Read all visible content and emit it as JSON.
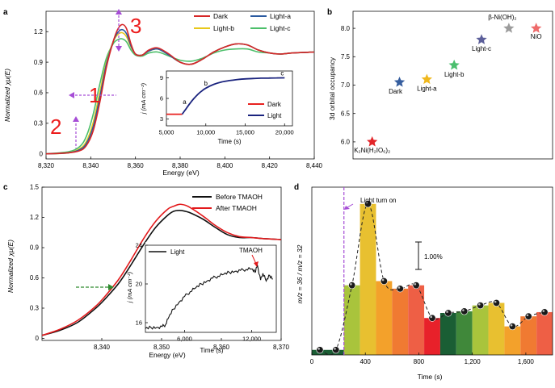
{
  "figure": {
    "panel_labels": [
      "a",
      "b",
      "c",
      "d"
    ],
    "annotations": {
      "red_1": "1",
      "red_2": "2",
      "red_3": "3"
    }
  },
  "chart_data": [
    {
      "id": "a",
      "type": "line",
      "xlabel": "Energy (eV)",
      "ylabel": "Normalized χμ(E)",
      "xlim": [
        8320,
        8440
      ],
      "ylim": [
        -0.05,
        1.4
      ],
      "xticks": [
        "8,320",
        "8,340",
        "8,360",
        "8,380",
        "8,400",
        "8,420",
        "8,440"
      ],
      "xtick_values": [
        8320,
        8340,
        8360,
        8380,
        8400,
        8420,
        8440
      ],
      "yticks": [
        "0",
        "0.3",
        "0.6",
        "0.9",
        "1.2"
      ],
      "ytick_values": [
        0,
        0.3,
        0.6,
        0.9,
        1.2
      ],
      "legend": [
        "Dark",
        "Light-a",
        "Light-b",
        "Light-c"
      ],
      "colors": {
        "Dark": "#d62728",
        "Light-a": "#2b5aa0",
        "Light-b": "#e8c81a",
        "Light-c": "#4cbf6a"
      },
      "series": [
        {
          "name": "Dark",
          "x": [
            8320,
            8330,
            8335,
            8338,
            8341,
            8344,
            8347,
            8350,
            8352,
            8354,
            8356,
            8358,
            8360,
            8363,
            8366,
            8370,
            8375,
            8380,
            8385,
            8390,
            8395,
            8400,
            8405,
            8410,
            8415,
            8420,
            8425,
            8430,
            8440
          ],
          "y": [
            0,
            0.01,
            0.03,
            0.08,
            0.22,
            0.5,
            0.85,
            1.1,
            1.22,
            1.27,
            1.23,
            1.08,
            0.98,
            0.97,
            1.02,
            1.04,
            0.98,
            0.9,
            0.88,
            0.93,
            1.0,
            1.05,
            1.08,
            1.07,
            1.02,
            0.99,
            0.98,
            0.99,
            1.0
          ]
        },
        {
          "name": "Light-a",
          "x": [
            8320,
            8330,
            8335,
            8338,
            8341,
            8344,
            8347,
            8350,
            8352,
            8354,
            8356,
            8358,
            8360,
            8363,
            8366,
            8370,
            8375,
            8380,
            8385,
            8390,
            8395,
            8400,
            8405,
            8410,
            8415,
            8420,
            8425,
            8430,
            8440
          ],
          "y": [
            0,
            0.01,
            0.04,
            0.1,
            0.26,
            0.55,
            0.88,
            1.1,
            1.19,
            1.22,
            1.18,
            1.06,
            0.98,
            0.97,
            1.01,
            1.03,
            0.97,
            0.9,
            0.88,
            0.93,
            1.0,
            1.05,
            1.08,
            1.07,
            1.02,
            0.99,
            0.98,
            0.99,
            1.0
          ]
        },
        {
          "name": "Light-b",
          "x": [
            8320,
            8330,
            8335,
            8338,
            8341,
            8344,
            8347,
            8350,
            8352,
            8354,
            8356,
            8358,
            8360,
            8363,
            8366,
            8370,
            8375,
            8380,
            8385,
            8390,
            8395,
            8400,
            8405,
            8410,
            8415,
            8420,
            8425,
            8430,
            8440
          ],
          "y": [
            0,
            0.01,
            0.05,
            0.12,
            0.3,
            0.6,
            0.9,
            1.1,
            1.17,
            1.19,
            1.15,
            1.05,
            0.98,
            0.97,
            1.01,
            1.03,
            0.97,
            0.9,
            0.88,
            0.93,
            1.0,
            1.05,
            1.08,
            1.07,
            1.02,
            0.99,
            0.98,
            0.99,
            1.0
          ]
        },
        {
          "name": "Light-c",
          "x": [
            8320,
            8330,
            8335,
            8338,
            8341,
            8344,
            8347,
            8350,
            8352,
            8354,
            8356,
            8358,
            8360,
            8363,
            8366,
            8370,
            8375,
            8380,
            8385,
            8390,
            8395,
            8400,
            8405,
            8410,
            8415,
            8420,
            8425,
            8430,
            8440
          ],
          "y": [
            0,
            0.02,
            0.07,
            0.17,
            0.38,
            0.68,
            0.94,
            1.08,
            1.12,
            1.13,
            1.1,
            1.02,
            0.97,
            0.96,
            0.99,
            1.0,
            0.96,
            0.92,
            0.91,
            0.94,
            0.99,
            1.02,
            1.03,
            1.03,
            1.0,
            0.99,
            0.98,
            0.99,
            1.0
          ]
        }
      ],
      "inset": {
        "xlabel": "Time (s)",
        "ylabel": "j (mA cm⁻²)",
        "xlim": [
          5000,
          21000
        ],
        "ylim": [
          2,
          10
        ],
        "xticks": [
          "5,000",
          "10,000",
          "15,000",
          "20,000"
        ],
        "xtick_values": [
          5000,
          10000,
          15000,
          20000
        ],
        "yticks": [
          "3",
          "6",
          "9"
        ],
        "ytick_values": [
          3,
          6,
          9
        ],
        "legend": [
          "Dark",
          "Light"
        ],
        "colors": {
          "Dark": "#e8211f",
          "Light": "#1a237e"
        },
        "point_labels": [
          {
            "text": "a",
            "x": 7300,
            "y": 5.2
          },
          {
            "text": "b",
            "x": 10000,
            "y": 7.9
          },
          {
            "text": "c",
            "x": 19700,
            "y": 9.35
          }
        ],
        "series": [
          {
            "name": "Dark",
            "x": [
              5000,
              7000
            ],
            "y": [
              3.7,
              3.7
            ]
          },
          {
            "name": "Light",
            "x": [
              7000,
              7500,
              8000,
              8500,
              9000,
              9500,
              10000,
              11000,
              12000,
              13000,
              14000,
              15000,
              16000,
              17000,
              18000,
              19000,
              20000
            ],
            "y": [
              3.7,
              4.5,
              5.3,
              6.0,
              6.6,
              7.1,
              7.5,
              8.05,
              8.4,
              8.6,
              8.75,
              8.85,
              8.9,
              8.95,
              8.97,
              8.99,
              9.0
            ]
          }
        ]
      }
    },
    {
      "id": "b",
      "type": "scatter",
      "ylabel": "3d orbital occupancy",
      "ylim": [
        5.7,
        8.3
      ],
      "yticks": [
        "6.0",
        "6.5",
        "7.0",
        "7.5",
        "8.0"
      ],
      "ytick_values": [
        6.0,
        6.5,
        7.0,
        7.5,
        8.0
      ],
      "points": [
        {
          "label": "K₂Ni(H₂IO₆)₂",
          "x": 1,
          "y": 6.0,
          "color": "#e3262a"
        },
        {
          "label": "Dark",
          "x": 2,
          "y": 7.05,
          "color": "#355d9e"
        },
        {
          "label": "Light-a",
          "x": 3,
          "y": 7.1,
          "color": "#f0b81e"
        },
        {
          "label": "Light-b",
          "x": 4,
          "y": 7.35,
          "color": "#4bbf6e"
        },
        {
          "label": "Light-c",
          "x": 5,
          "y": 7.8,
          "color": "#5c5f9a"
        },
        {
          "label": "β-Ni(OH)₂",
          "x": 6,
          "y": 8.0,
          "color": "#9c9c9c"
        },
        {
          "label": "NiO",
          "x": 7,
          "y": 8.0,
          "color": "#ee6a6a"
        }
      ]
    },
    {
      "id": "c",
      "type": "line",
      "xlabel": "Energy (eV)",
      "ylabel": "Normalized χμ(E)",
      "xlim": [
        8330,
        8370
      ],
      "ylim": [
        -0.02,
        1.5
      ],
      "xticks": [
        "8,340",
        "8,350",
        "8,360",
        "8,370"
      ],
      "xtick_values": [
        8340,
        8350,
        8360,
        8370
      ],
      "yticks": [
        "0",
        "0.3",
        "0.6",
        "0.9",
        "1.2",
        "1.5"
      ],
      "ytick_values": [
        0,
        0.3,
        0.6,
        0.9,
        1.2,
        1.5
      ],
      "legend": [
        "Before TMAOH",
        "After TMAOH"
      ],
      "colors": {
        "Before TMAOH": "#111111",
        "After TMAOH": "#e31a1c"
      },
      "series": [
        {
          "name": "Before TMAOH",
          "x": [
            8330,
            8333,
            8336,
            8339,
            8341,
            8343,
            8345,
            8347,
            8349,
            8351,
            8352,
            8353,
            8354,
            8355,
            8357,
            8359,
            8361,
            8363,
            8365,
            8367,
            8370
          ],
          "y": [
            0.03,
            0.08,
            0.16,
            0.3,
            0.42,
            0.56,
            0.74,
            0.93,
            1.1,
            1.22,
            1.26,
            1.27,
            1.26,
            1.24,
            1.18,
            1.1,
            1.03,
            1.0,
            1.0,
            0.99,
            0.98
          ]
        },
        {
          "name": "After TMAOH",
          "x": [
            8330,
            8333,
            8336,
            8339,
            8341,
            8343,
            8345,
            8347,
            8349,
            8351,
            8352,
            8353,
            8354,
            8355,
            8357,
            8359,
            8361,
            8363,
            8365,
            8367,
            8370
          ],
          "y": [
            0.03,
            0.09,
            0.18,
            0.32,
            0.45,
            0.6,
            0.79,
            0.99,
            1.16,
            1.28,
            1.31,
            1.33,
            1.32,
            1.29,
            1.21,
            1.12,
            1.05,
            1.01,
            1.0,
            0.99,
            0.98
          ]
        }
      ],
      "inset": {
        "xlabel": "Time (s)",
        "ylabel": "j (mA cm⁻²)",
        "xlim": [
          2500,
          14200
        ],
        "ylim": [
          15,
          24
        ],
        "xticks": [
          "6,000",
          "12,000"
        ],
        "xtick_values": [
          6000,
          12000
        ],
        "yticks": [
          "16",
          "20",
          "24"
        ],
        "ytick_values": [
          16,
          20,
          24
        ],
        "legend": [
          "Light"
        ],
        "annotation": "TMAOH",
        "annotation_x": 12500,
        "series": [
          {
            "name": "Light",
            "x": [
              2500,
              3000,
              3500,
              4000,
              4300,
              4600,
              5000,
              5500,
              6000,
              6500,
              7000,
              7500,
              8000,
              8500,
              9000,
              9500,
              10000,
              10500,
              11000,
              11500,
              12000,
              12300,
              12500,
              12800,
              13000,
              13300,
              13600,
              13900
            ],
            "y": [
              15.4,
              15.5,
              15.5,
              15.6,
              15.8,
              16.6,
              17.4,
              18.1,
              18.7,
              19.2,
              19.6,
              20.0,
              20.3,
              20.6,
              20.8,
              21.0,
              21.2,
              21.3,
              21.4,
              21.5,
              21.55,
              21.2,
              22.0,
              20.4,
              21.1,
              20.3,
              20.9,
              20.5
            ]
          }
        ]
      }
    },
    {
      "id": "d",
      "type": "bar",
      "xlabel": "Time (s)",
      "ylabel": "m/z = 36 / m/z = 32",
      "xlim": [
        0,
        1800
      ],
      "ylim": [
        0,
        10
      ],
      "xticks": [
        "0",
        "400",
        "800",
        "1,200",
        "1,600"
      ],
      "xtick_values": [
        0,
        400,
        800,
        1200,
        1600
      ],
      "scale_bar_label": "1.00%",
      "annotation": "Light turn on",
      "light_on_time": 240,
      "bars": [
        {
          "start": 0,
          "end": 240,
          "value": 0.3,
          "color": "#1a5e34"
        },
        {
          "start": 240,
          "end": 360,
          "value": 4.15,
          "color": "#a9c43c"
        },
        {
          "start": 360,
          "end": 480,
          "value": 9.0,
          "color": "#e8c030"
        },
        {
          "start": 480,
          "end": 600,
          "value": 4.4,
          "color": "#f3a12b"
        },
        {
          "start": 600,
          "end": 720,
          "value": 3.95,
          "color": "#f07a32"
        },
        {
          "start": 720,
          "end": 840,
          "value": 4.15,
          "color": "#ee5f45"
        },
        {
          "start": 840,
          "end": 960,
          "value": 2.2,
          "color": "#e8212a"
        },
        {
          "start": 960,
          "end": 1080,
          "value": 2.5,
          "color": "#1a5e34"
        },
        {
          "start": 1080,
          "end": 1200,
          "value": 2.6,
          "color": "#40883a"
        },
        {
          "start": 1200,
          "end": 1320,
          "value": 2.95,
          "color": "#a9c43c"
        },
        {
          "start": 1320,
          "end": 1440,
          "value": 3.1,
          "color": "#e8c030"
        },
        {
          "start": 1440,
          "end": 1560,
          "value": 1.7,
          "color": "#f3a12b"
        },
        {
          "start": 1560,
          "end": 1680,
          "value": 2.3,
          "color": "#f07a32"
        },
        {
          "start": 1680,
          "end": 1800,
          "value": 2.55,
          "color": "#ee5f45"
        }
      ],
      "points": {
        "x": [
          60,
          180,
          300,
          420,
          540,
          660,
          780,
          900,
          1020,
          1140,
          1260,
          1380,
          1500,
          1620,
          1740
        ],
        "y": [
          0.3,
          0.3,
          4.15,
          9.0,
          4.4,
          3.95,
          4.15,
          2.2,
          2.5,
          2.6,
          2.95,
          3.1,
          1.7,
          2.3,
          2.55
        ]
      }
    }
  ]
}
